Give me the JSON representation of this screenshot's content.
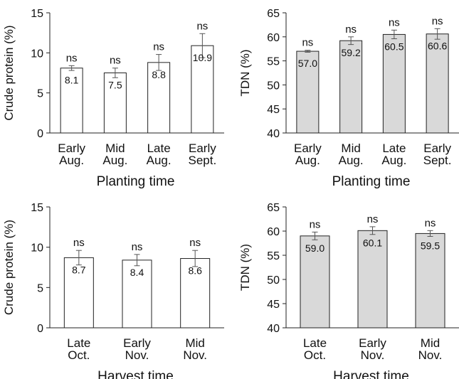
{
  "colors": {
    "white_bar": "#ffffff",
    "gray_bar": "#d9d9d9",
    "axis": "#222222",
    "error_bar": "#555555"
  },
  "chart_data": [
    {
      "id": "cp-planting",
      "type": "bar",
      "ylabel": "Crude protein (%)",
      "xlabel": "Planting time",
      "ylim": [
        0,
        15
      ],
      "yticks": [
        0,
        5,
        10,
        15
      ],
      "categories": [
        [
          "Early",
          "Aug."
        ],
        [
          "Mid",
          "Aug."
        ],
        [
          "Late",
          "Aug."
        ],
        [
          "Early",
          "Sept."
        ]
      ],
      "values": [
        8.1,
        7.5,
        8.8,
        10.9
      ],
      "value_labels": [
        "8.1",
        "7.5",
        "8.8",
        "10.9"
      ],
      "errors": [
        0.3,
        0.6,
        1.0,
        1.5
      ],
      "annotations": [
        "ns",
        "ns",
        "ns",
        "ns"
      ],
      "bar_color": "#ffffff",
      "grid": false
    },
    {
      "id": "tdn-planting",
      "type": "bar",
      "ylabel": "TDN (%)",
      "xlabel": "Planting time",
      "ylim": [
        40,
        65
      ],
      "yticks": [
        40,
        45,
        50,
        55,
        60,
        65
      ],
      "categories": [
        [
          "Early",
          "Aug."
        ],
        [
          "Mid",
          "Aug."
        ],
        [
          "Late",
          "Aug."
        ],
        [
          "Early",
          "Sept."
        ]
      ],
      "values": [
        57.0,
        59.2,
        60.5,
        60.6
      ],
      "value_labels": [
        "57.0",
        "59.2",
        "60.5",
        "60.6"
      ],
      "errors": [
        0.2,
        0.8,
        0.9,
        1.1
      ],
      "annotations": [
        "ns",
        "ns",
        "ns",
        "ns"
      ],
      "bar_color": "#d9d9d9",
      "grid": false
    },
    {
      "id": "cp-harvest",
      "type": "bar",
      "ylabel": "Crude protein (%)",
      "xlabel": "Harvest time",
      "ylim": [
        0,
        15
      ],
      "yticks": [
        0,
        5,
        10,
        15
      ],
      "categories": [
        [
          "Late",
          "Oct."
        ],
        [
          "Early",
          "Nov."
        ],
        [
          "Mid",
          "Nov."
        ]
      ],
      "values": [
        8.7,
        8.4,
        8.6
      ],
      "value_labels": [
        "8.7",
        "8.4",
        "8.6"
      ],
      "errors": [
        0.9,
        0.7,
        1.0
      ],
      "annotations": [
        "ns",
        "ns",
        "ns"
      ],
      "bar_color": "#ffffff",
      "grid": false
    },
    {
      "id": "tdn-harvest",
      "type": "bar",
      "ylabel": "TDN (%)",
      "xlabel": "Harvest time",
      "ylim": [
        40,
        65
      ],
      "yticks": [
        40,
        45,
        50,
        55,
        60,
        65
      ],
      "categories": [
        [
          "Late",
          "Oct."
        ],
        [
          "Early",
          "Nov."
        ],
        [
          "Mid",
          "Nov."
        ]
      ],
      "values": [
        59.0,
        60.1,
        59.5
      ],
      "value_labels": [
        "59.0",
        "60.1",
        "59.5"
      ],
      "errors": [
        0.8,
        0.8,
        0.6
      ],
      "annotations": [
        "ns",
        "ns",
        "ns"
      ],
      "bar_color": "#d9d9d9",
      "grid": false
    }
  ]
}
